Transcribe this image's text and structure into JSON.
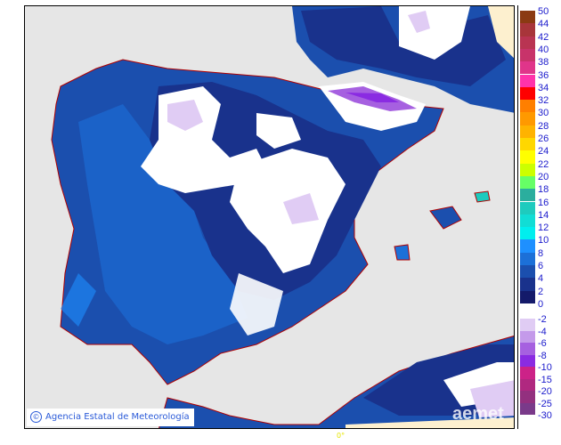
{
  "credit": {
    "symbol": "©",
    "text": "Agencia Estatal de Meteorología"
  },
  "longitude_label": "0°",
  "watermark": "aemet",
  "legend": {
    "positive": {
      "labels": [
        "50",
        "44",
        "42",
        "40",
        "38",
        "36",
        "34",
        "32",
        "30",
        "28",
        "26",
        "24",
        "22",
        "20",
        "18",
        "16",
        "14",
        "12",
        "10",
        "8",
        "6",
        "4",
        "2",
        "0"
      ],
      "colors": [
        "#8B3A12",
        "#A8353A",
        "#B93452",
        "#C8336A",
        "#E0358A",
        "#FF33AA",
        "#FF0000",
        "#FF7F00",
        "#FF9900",
        "#FFB300",
        "#FFD700",
        "#FFFF00",
        "#CCFF00",
        "#66FF66",
        "#2BAE9E",
        "#1ECBBE",
        "#11DDD5",
        "#00EEEE",
        "#1E90FF",
        "#1C70D8",
        "#1B4FAE",
        "#19328C",
        "#141A6A"
      ]
    },
    "negative": {
      "labels": [
        "-2",
        "-4",
        "-6",
        "-8",
        "-10",
        "-15",
        "-20",
        "-25",
        "-30"
      ],
      "colors": [
        "#E0CCF4",
        "#C49AEA",
        "#A660E0",
        "#8A2BE2",
        "#CC2288",
        "#B02880",
        "#93307F",
        "#7A3A8A"
      ]
    }
  },
  "colors": {
    "sea": "#e6e6e6",
    "border": "#b00000",
    "frost": "#ffffff",
    "cream": "#fdf0cf"
  }
}
